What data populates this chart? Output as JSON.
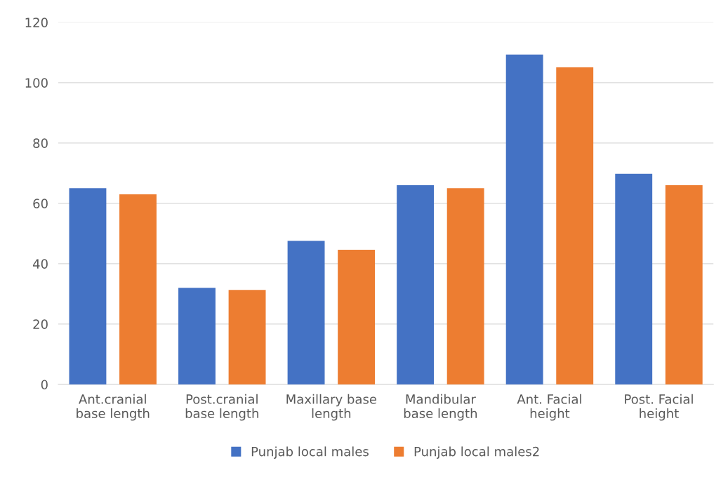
{
  "chart_data": {
    "type": "bar",
    "categories": [
      "Ant.cranial\nbase length",
      "Post.cranial\nbase length",
      "Maxillary base\nlength",
      "Mandibular\nbase length",
      "Ant. Facial\nheight",
      "Post. Facial\nheight"
    ],
    "series": [
      {
        "name": "Punjab local males",
        "color": "#4472c4",
        "values": [
          65,
          32,
          47.6,
          66,
          109.3,
          69.8
        ]
      },
      {
        "name": "Punjab local males2",
        "color": "#ed7d31",
        "values": [
          63,
          31.3,
          44.6,
          65,
          105.1,
          66
        ]
      }
    ],
    "ylim": [
      0,
      120
    ],
    "yticks": [
      0,
      20,
      40,
      60,
      80,
      100,
      120
    ],
    "grid": "y",
    "legend": "bottom"
  }
}
